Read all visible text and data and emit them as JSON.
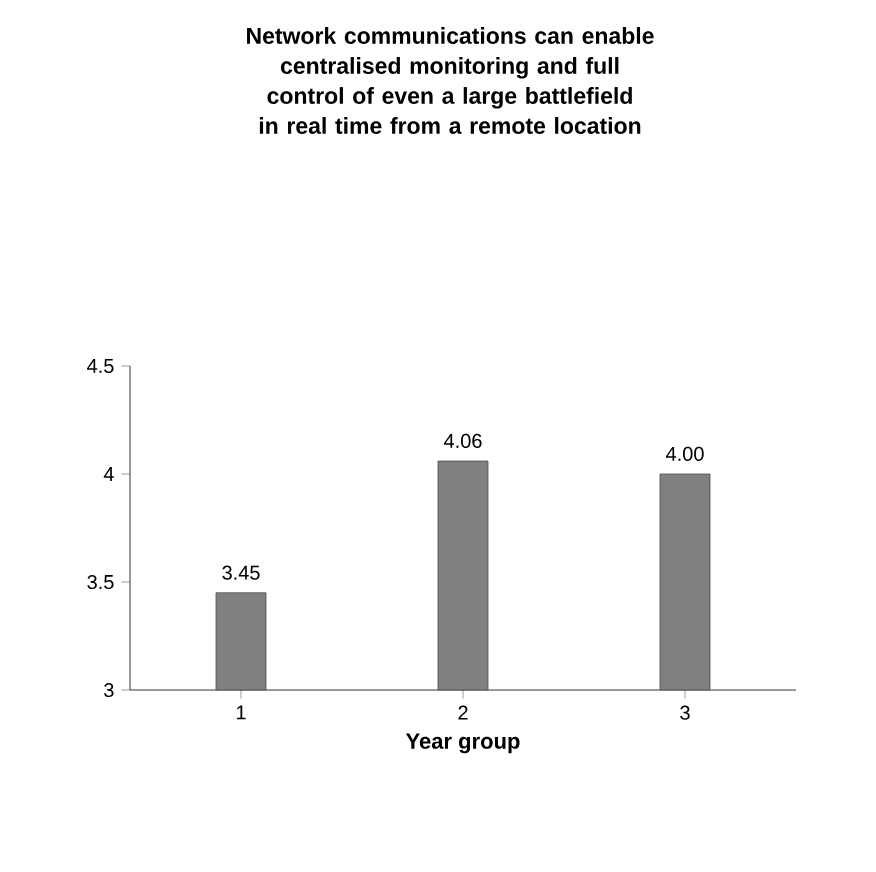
{
  "chart_data": {
    "type": "bar",
    "title": "Network communications can enable centralised monitoring and full control of even a large battlefield in real time from a remote location",
    "xlabel": "Year group",
    "categories": [
      "1",
      "2",
      "3"
    ],
    "values": [
      3.45,
      4.06,
      4.0
    ],
    "value_labels": [
      "3.45",
      "4.06",
      "4.00"
    ],
    "color": "#808080",
    "ylim": [
      3,
      4.5
    ],
    "yticks": [
      3,
      3.5,
      4,
      4.5
    ],
    "grid": false
  }
}
